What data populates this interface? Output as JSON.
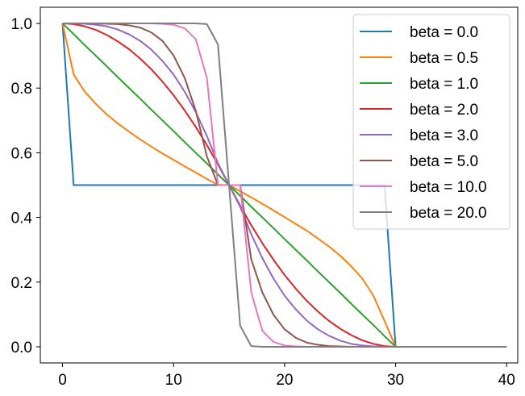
{
  "chart_data": {
    "type": "line",
    "title": "",
    "xlabel": "",
    "ylabel": "",
    "xlim": [
      -2,
      41
    ],
    "ylim": [
      -0.05,
      1.05
    ],
    "grid": false,
    "legend_position": "top-right",
    "x_ticks": [
      {
        "value": 0,
        "label": "0"
      },
      {
        "value": 10,
        "label": "10"
      },
      {
        "value": 20,
        "label": "20"
      },
      {
        "value": 30,
        "label": "30"
      },
      {
        "value": 40,
        "label": "40"
      }
    ],
    "y_ticks": [
      {
        "value": 0.0,
        "label": "0.0"
      },
      {
        "value": 0.2,
        "label": "0.2"
      },
      {
        "value": 0.4,
        "label": "0.4"
      },
      {
        "value": 0.6,
        "label": "0.6"
      },
      {
        "value": 0.8,
        "label": "0.8"
      },
      {
        "value": 1.0,
        "label": "1.0"
      }
    ],
    "x": [
      0,
      1,
      2,
      3,
      4,
      5,
      6,
      7,
      8,
      9,
      10,
      11,
      12,
      13,
      14,
      15,
      16,
      17,
      18,
      19,
      20,
      21,
      22,
      23,
      24,
      25,
      26,
      27,
      28,
      29,
      30,
      31,
      32,
      33,
      34,
      35,
      36,
      37,
      38,
      39,
      40
    ],
    "series": [
      {
        "name": "beta = 0.0",
        "color": "#1f77b4",
        "values": [
          1.0,
          0.5,
          0.5,
          0.5,
          0.5,
          0.5,
          0.5,
          0.5,
          0.5,
          0.5,
          0.5,
          0.5,
          0.5,
          0.5,
          0.5,
          0.5,
          0.5,
          0.5,
          0.5,
          0.5,
          0.5,
          0.5,
          0.5,
          0.5,
          0.5,
          0.5,
          0.5,
          0.5,
          0.5,
          0.5,
          0.0,
          0.0,
          0.0,
          0.0,
          0.0,
          0.0,
          0.0,
          0.0,
          0.0,
          0.0,
          0.0
        ]
      },
      {
        "name": "beta = 0.5",
        "color": "#ff7f0e",
        "values": [
          1.0,
          0.842,
          0.789,
          0.751,
          0.718,
          0.69,
          0.665,
          0.641,
          0.619,
          0.598,
          0.578,
          0.558,
          0.539,
          0.519,
          0.501,
          0.5,
          0.481,
          0.462,
          0.442,
          0.422,
          0.401,
          0.38,
          0.359,
          0.335,
          0.31,
          0.282,
          0.249,
          0.211,
          0.158,
          0.08,
          0.0,
          0.0,
          0.0,
          0.0,
          0.0,
          0.0,
          0.0,
          0.0,
          0.0,
          0.0,
          0.0
        ]
      },
      {
        "name": "beta = 1.0",
        "color": "#2ca02c",
        "values": [
          1.0,
          0.967,
          0.933,
          0.9,
          0.867,
          0.833,
          0.8,
          0.767,
          0.733,
          0.7,
          0.667,
          0.633,
          0.6,
          0.567,
          0.533,
          0.5,
          0.467,
          0.433,
          0.4,
          0.367,
          0.333,
          0.3,
          0.267,
          0.233,
          0.2,
          0.167,
          0.133,
          0.1,
          0.067,
          0.033,
          0.0,
          0.0,
          0.0,
          0.0,
          0.0,
          0.0,
          0.0,
          0.0,
          0.0,
          0.0,
          0.0
        ]
      },
      {
        "name": "beta = 2.0",
        "color": "#d62728",
        "values": [
          1.0,
          0.998,
          0.991,
          0.98,
          0.964,
          0.944,
          0.92,
          0.891,
          0.858,
          0.82,
          0.778,
          0.731,
          0.68,
          0.624,
          0.564,
          0.5,
          0.436,
          0.376,
          0.32,
          0.269,
          0.222,
          0.18,
          0.142,
          0.109,
          0.08,
          0.056,
          0.036,
          0.02,
          0.009,
          0.002,
          0.0,
          0.0,
          0.0,
          0.0,
          0.0,
          0.0,
          0.0,
          0.0,
          0.0,
          0.0,
          0.0
        ]
      },
      {
        "name": "beta = 3.0",
        "color": "#9467bd",
        "values": [
          1.0,
          1.0,
          0.999,
          0.996,
          0.991,
          0.981,
          0.966,
          0.946,
          0.919,
          0.884,
          0.842,
          0.789,
          0.726,
          0.652,
          0.567,
          0.5,
          0.433,
          0.348,
          0.274,
          0.211,
          0.158,
          0.116,
          0.081,
          0.054,
          0.034,
          0.019,
          0.009,
          0.004,
          0.001,
          0.0,
          0.0,
          0.0,
          0.0,
          0.0,
          0.0,
          0.0,
          0.0,
          0.0,
          0.0,
          0.0,
          0.0
        ]
      },
      {
        "name": "beta = 5.0",
        "color": "#8c564b",
        "values": [
          1.0,
          1.0,
          1.0,
          1.0,
          0.999,
          0.998,
          0.994,
          0.987,
          0.972,
          0.946,
          0.901,
          0.832,
          0.73,
          0.589,
          0.5,
          0.5,
          0.5,
          0.27,
          0.168,
          0.099,
          0.054,
          0.028,
          0.013,
          0.006,
          0.002,
          0.001,
          0.0,
          0.0,
          0.0,
          0.0,
          0.0,
          0.0,
          0.0,
          0.0,
          0.0,
          0.0,
          0.0,
          0.0,
          0.0,
          0.0,
          0.0
        ]
      },
      {
        "name": "beta = 10.0",
        "color": "#e377c2",
        "values": [
          1.0,
          1.0,
          1.0,
          1.0,
          1.0,
          1.0,
          1.0,
          1.0,
          1.0,
          0.999,
          0.996,
          0.985,
          0.951,
          0.832,
          0.5,
          0.5,
          0.5,
          0.168,
          0.049,
          0.015,
          0.004,
          0.001,
          0.0,
          0.0,
          0.0,
          0.0,
          0.0,
          0.0,
          0.0,
          0.0,
          0.0,
          0.0,
          0.0,
          0.0,
          0.0,
          0.0,
          0.0,
          0.0,
          0.0,
          0.0,
          0.0
        ]
      },
      {
        "name": "beta = 20.0",
        "color": "#7f7f7f",
        "values": [
          1.0,
          1.0,
          1.0,
          1.0,
          1.0,
          1.0,
          1.0,
          1.0,
          1.0,
          1.0,
          1.0,
          1.0,
          1.0,
          0.998,
          0.935,
          0.5,
          0.065,
          0.002,
          0.0,
          0.0,
          0.0,
          0.0,
          0.0,
          0.0,
          0.0,
          0.0,
          0.0,
          0.0,
          0.0,
          0.0,
          0.0,
          0.0,
          0.0,
          0.0,
          0.0,
          0.0,
          0.0,
          0.0,
          0.0,
          0.0,
          0.0
        ]
      }
    ]
  }
}
